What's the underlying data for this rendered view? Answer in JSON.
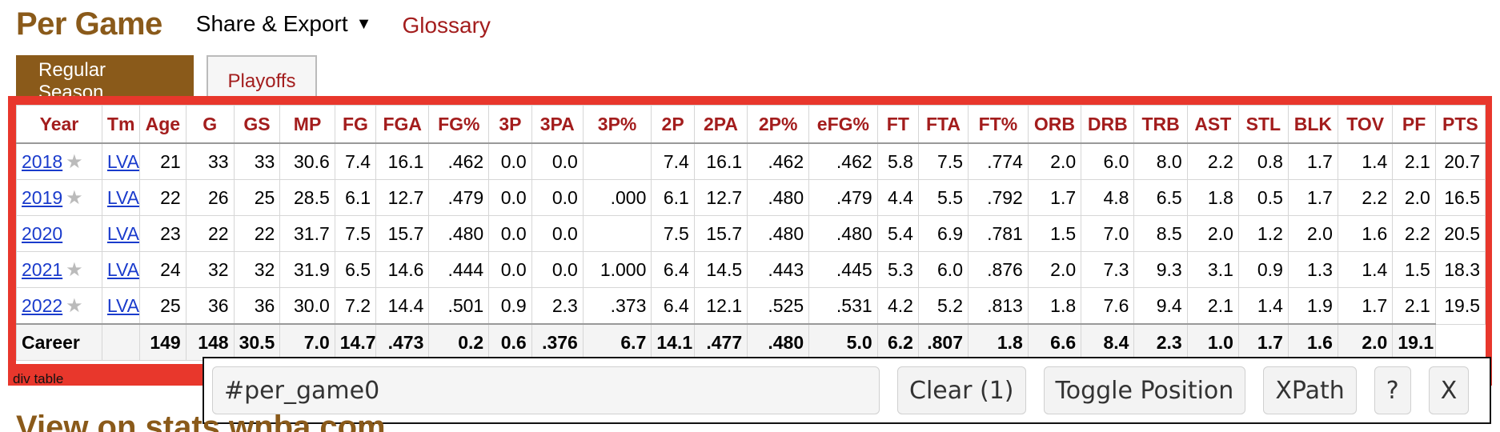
{
  "header": {
    "title": "Per Game",
    "share_export": "Share & Export",
    "share_caret": "▼",
    "glossary": "Glossary"
  },
  "tabs": [
    {
      "label": "Regular Season",
      "active": true
    },
    {
      "label": "Playoffs",
      "active": false
    }
  ],
  "table": {
    "columns": [
      "Year",
      "Tm",
      "Age",
      "G",
      "GS",
      "MP",
      "FG",
      "FGA",
      "FG%",
      "3P",
      "3PA",
      "3P%",
      "2P",
      "2PA",
      "2P%",
      "eFG%",
      "FT",
      "FTA",
      "FT%",
      "ORB",
      "DRB",
      "TRB",
      "AST",
      "STL",
      "BLK",
      "TOV",
      "PF",
      "PTS"
    ],
    "rows": [
      {
        "year": "2018",
        "star": true,
        "team": "LVA",
        "stats": [
          "21",
          "33",
          "33",
          "30.6",
          "7.4",
          "16.1",
          ".462",
          "0.0",
          "0.0",
          "",
          "7.4",
          "16.1",
          ".462",
          ".462",
          "5.8",
          "7.5",
          ".774",
          "2.0",
          "6.0",
          "8.0",
          "2.2",
          "0.8",
          "1.7",
          "1.4",
          "2.1",
          "20.7"
        ]
      },
      {
        "year": "2019",
        "star": true,
        "team": "LVA",
        "stats": [
          "22",
          "26",
          "25",
          "28.5",
          "6.1",
          "12.7",
          ".479",
          "0.0",
          "0.0",
          ".000",
          "6.1",
          "12.7",
          ".480",
          ".479",
          "4.4",
          "5.5",
          ".792",
          "1.7",
          "4.8",
          "6.5",
          "1.8",
          "0.5",
          "1.7",
          "2.2",
          "2.0",
          "16.5"
        ]
      },
      {
        "year": "2020",
        "star": false,
        "team": "LVA",
        "stats": [
          "23",
          "22",
          "22",
          "31.7",
          "7.5",
          "15.7",
          ".480",
          "0.0",
          "0.0",
          "",
          "7.5",
          "15.7",
          ".480",
          ".480",
          "5.4",
          "6.9",
          ".781",
          "1.5",
          "7.0",
          "8.5",
          "2.0",
          "1.2",
          "2.0",
          "1.6",
          "2.2",
          "20.5"
        ]
      },
      {
        "year": "2021",
        "star": true,
        "team": "LVA",
        "stats": [
          "24",
          "32",
          "32",
          "31.9",
          "6.5",
          "14.6",
          ".444",
          "0.0",
          "0.0",
          "1.000",
          "6.4",
          "14.5",
          ".443",
          ".445",
          "5.3",
          "6.0",
          ".876",
          "2.0",
          "7.3",
          "9.3",
          "3.1",
          "0.9",
          "1.3",
          "1.4",
          "1.5",
          "18.3"
        ]
      },
      {
        "year": "2022",
        "star": true,
        "team": "LVA",
        "stats": [
          "25",
          "36",
          "36",
          "30.0",
          "7.2",
          "14.4",
          ".501",
          "0.9",
          "2.3",
          ".373",
          "6.4",
          "12.1",
          ".525",
          ".531",
          "4.2",
          "5.2",
          ".813",
          "1.8",
          "7.6",
          "9.4",
          "2.1",
          "1.4",
          "1.9",
          "1.7",
          "2.1",
          "19.5"
        ]
      }
    ],
    "career": {
      "label": "Career",
      "stats": [
        "",
        "149",
        "148",
        "30.5",
        "7.0",
        "14.7",
        ".473",
        "0.2",
        "0.6",
        ".376",
        "6.7",
        "14.1",
        ".477",
        ".480",
        "5.0",
        "6.2",
        ".807",
        "1.8",
        "6.6",
        "8.4",
        "2.3",
        "1.0",
        "1.7",
        "1.6",
        "2.0",
        "19.1"
      ]
    }
  },
  "outline_label": "div table",
  "inspector": {
    "selector_value": "#per_game0",
    "clear_label": "Clear (1)",
    "toggle_label": "Toggle Position",
    "xpath_label": "XPath",
    "help_label": "?",
    "close_label": "X"
  },
  "next_section_title": "View on stats.wnba.com",
  "colors": {
    "brand_brown": "#8a5a1a",
    "link_red": "#a31d1d",
    "link_blue": "#1a3bcc",
    "outline_red": "#e8372c"
  }
}
